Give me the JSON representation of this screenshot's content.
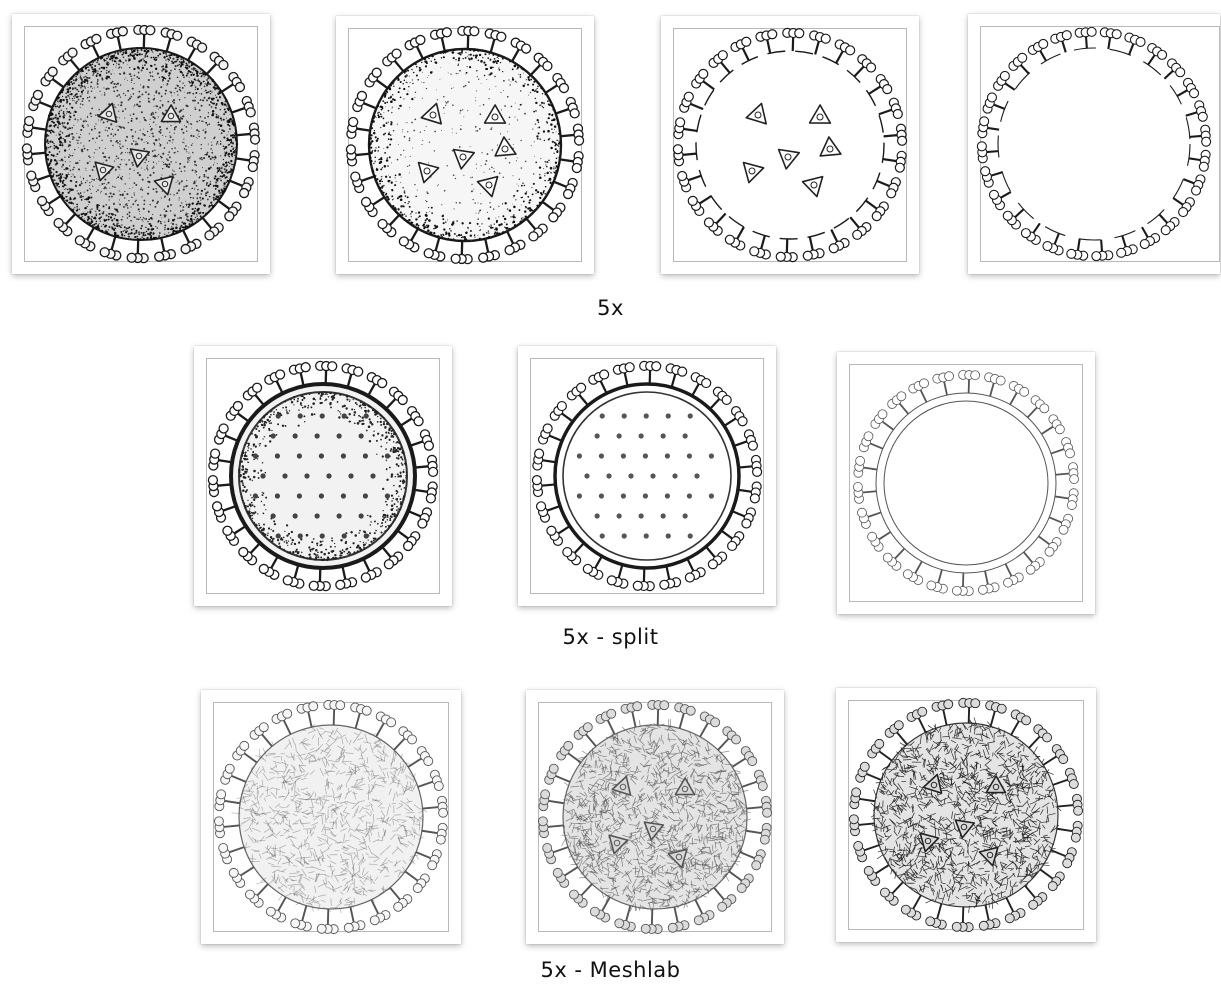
{
  "captions": {
    "row1": "5x",
    "row2": "5x - split",
    "row3": "5x - Meshlab"
  },
  "renderings": [
    {
      "style": "dense-stipple",
      "spikes": "dark"
    },
    {
      "style": "medium-stipple-triangles"
    },
    {
      "style": "outline-triangles"
    },
    {
      "style": "outline-ring-sparse"
    },
    {
      "style": "split-dark-ring-dots"
    },
    {
      "style": "split-light-ring-dots"
    },
    {
      "style": "split-outline-ring"
    },
    {
      "style": "mesh-light"
    },
    {
      "style": "mesh-medium"
    },
    {
      "style": "mesh-dark"
    }
  ],
  "colors": {
    "ink": "#1a1a1a",
    "frame": "#b9b9b9",
    "mesh": "#555555"
  }
}
